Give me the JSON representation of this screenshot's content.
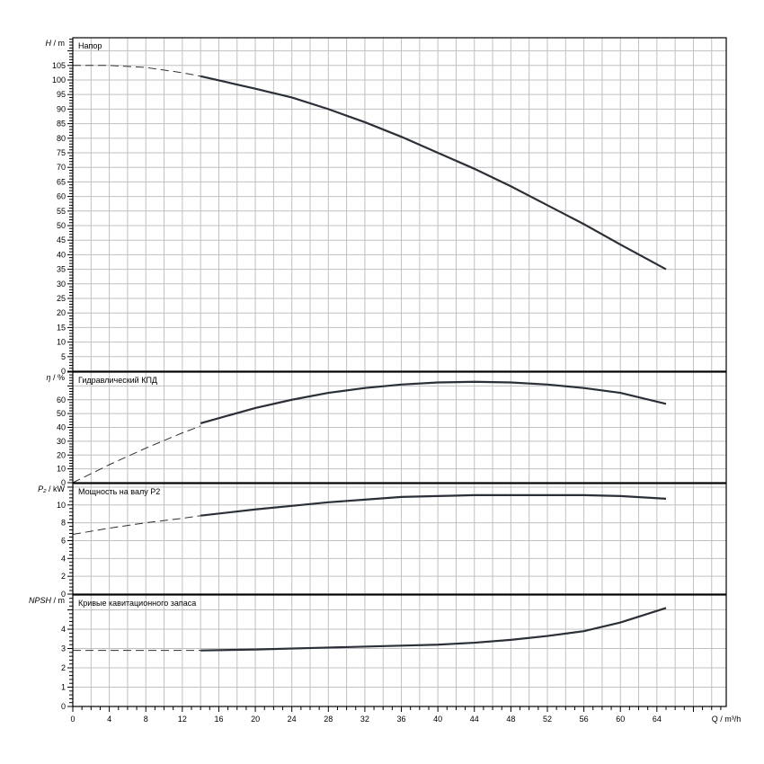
{
  "chart_data": [
    {
      "type": "line",
      "title": "Напор",
      "ylabel_sym": "H",
      "ylabel_unit": " / m",
      "ylim": [
        0,
        114.5
      ],
      "ytick_step": 5,
      "yticks": [
        0,
        5,
        10,
        15,
        20,
        25,
        30,
        35,
        40,
        45,
        50,
        55,
        60,
        65,
        70,
        75,
        80,
        85,
        90,
        95,
        100,
        105
      ],
      "dashed": {
        "x": [
          0,
          4,
          8,
          12,
          14
        ],
        "y": [
          105,
          105,
          104.3,
          102.5,
          101.3
        ]
      },
      "solid": {
        "x": [
          14,
          20,
          24,
          28,
          32,
          36,
          40,
          44,
          48,
          52,
          56,
          60,
          65
        ],
        "y": [
          101.3,
          97,
          94,
          90,
          85.5,
          80.5,
          75,
          69.5,
          63.5,
          57,
          50.5,
          43.5,
          35
        ]
      }
    },
    {
      "type": "line",
      "title": "Гидравлический КПД",
      "ylabel_sym": "η",
      "ylabel_unit": " / %",
      "ylim": [
        0,
        80
      ],
      "ytick_step": 10,
      "yticks": [
        0,
        10,
        20,
        30,
        40,
        50,
        60
      ],
      "dashed": {
        "x": [
          0,
          4,
          8,
          12,
          14
        ],
        "y": [
          0,
          13,
          25,
          36,
          41
        ]
      },
      "solid": {
        "x": [
          14,
          20,
          24,
          28,
          32,
          36,
          40,
          44,
          48,
          52,
          56,
          60,
          65
        ],
        "y": [
          43,
          54,
          60,
          65,
          68.5,
          71,
          72.5,
          73,
          72.5,
          71,
          68.5,
          65,
          57
        ]
      }
    },
    {
      "type": "line",
      "title": "Мощность на валу P2",
      "ylabel_sym": "P₂",
      "ylabel_unit": " / kW",
      "ylim": [
        0,
        12.4
      ],
      "ytick_step": 2,
      "yticks": [
        0,
        2,
        4,
        6,
        8,
        10
      ],
      "dashed": {
        "x": [
          0,
          4,
          8,
          12,
          14
        ],
        "y": [
          6.7,
          7.4,
          8.0,
          8.5,
          8.8
        ]
      },
      "solid": {
        "x": [
          14,
          20,
          24,
          28,
          32,
          36,
          40,
          44,
          48,
          52,
          56,
          60,
          65
        ],
        "y": [
          8.8,
          9.5,
          9.9,
          10.3,
          10.6,
          10.9,
          11.0,
          11.1,
          11.1,
          11.1,
          11.1,
          11.0,
          10.7
        ]
      }
    },
    {
      "type": "line",
      "title": "Кривые кавитационного запаса",
      "ylabel_sym": "NPSH",
      "ylabel_unit": " / m",
      "ylim": [
        0,
        5.77
      ],
      "ytick_step": 1,
      "yticks": [
        0,
        1,
        2,
        3,
        4
      ],
      "dashed": {
        "x": [
          0,
          4,
          8,
          12,
          14
        ],
        "y": [
          2.9,
          2.9,
          2.9,
          2.9,
          2.9
        ]
      },
      "solid": {
        "x": [
          14,
          20,
          28,
          36,
          40,
          44,
          48,
          52,
          56,
          60,
          65
        ],
        "y": [
          2.9,
          2.95,
          3.05,
          3.15,
          3.2,
          3.3,
          3.45,
          3.65,
          3.9,
          4.35,
          5.1
        ]
      }
    }
  ],
  "xaxis": {
    "label": "Q / m³/h",
    "xlim": [
      0,
      71.6
    ],
    "xticks": [
      0,
      4,
      8,
      12,
      16,
      20,
      24,
      28,
      32,
      36,
      40,
      44,
      48,
      52,
      56,
      60,
      64
    ]
  }
}
